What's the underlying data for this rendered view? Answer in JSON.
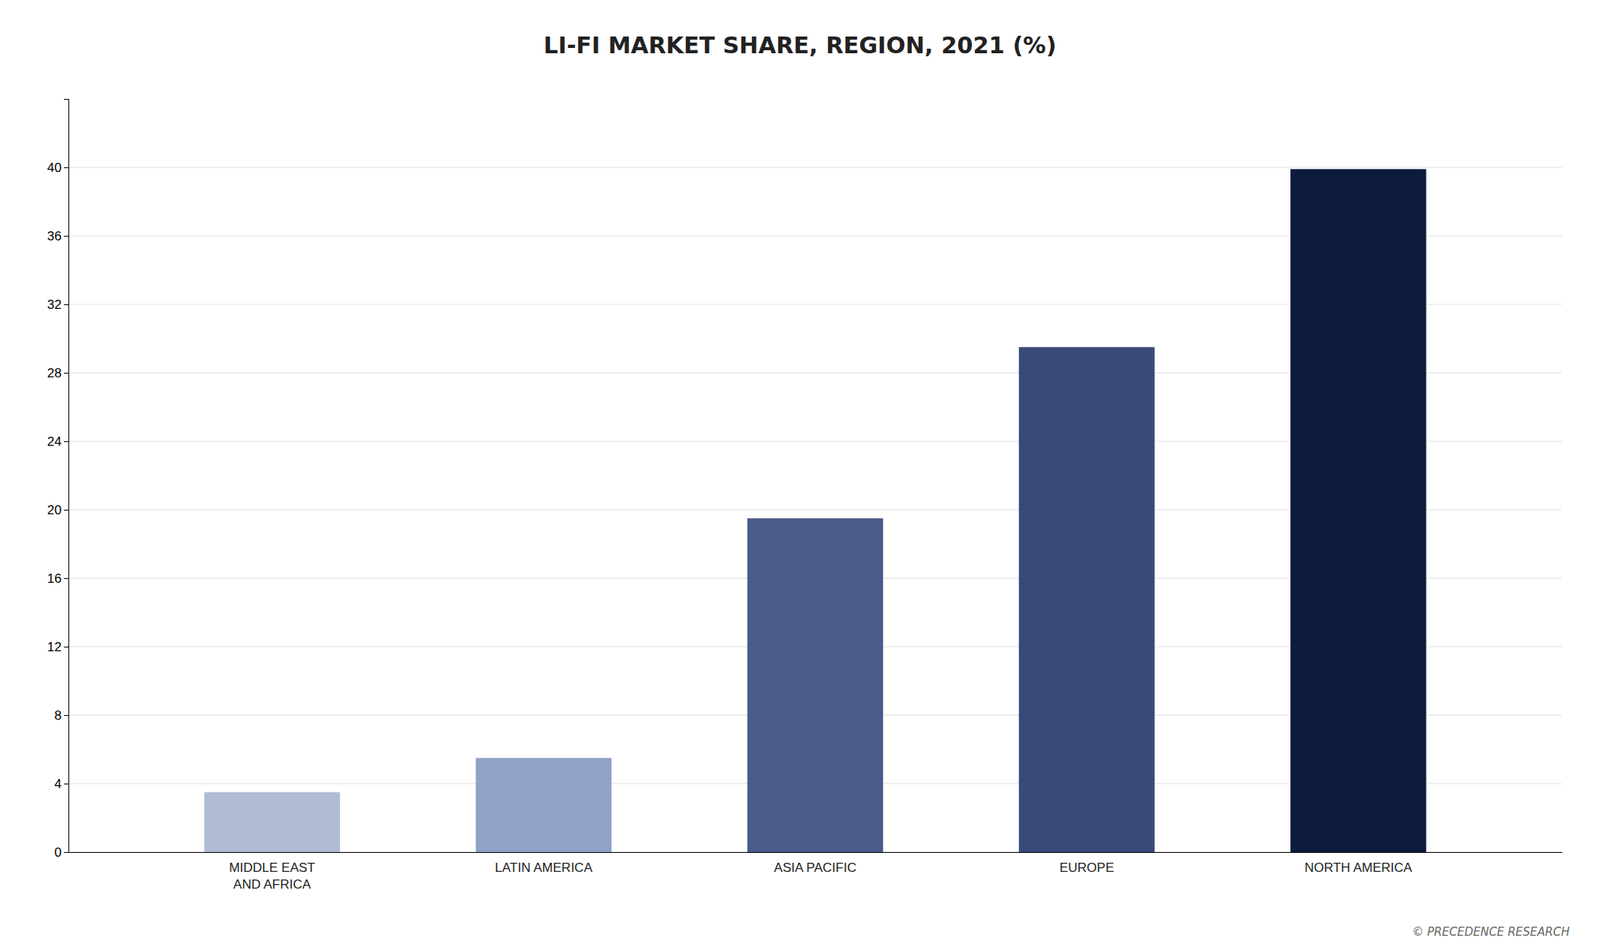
{
  "chart_data": {
    "type": "bar",
    "title": "LI-FI MARKET SHARE, REGION, 2021 (%)",
    "categories": [
      "MIDDLE EAST\nAND AFRICA",
      "LATIN AMERICA",
      "ASIA PACIFIC",
      "EUROPE",
      "NORTH AMERICA"
    ],
    "values": [
      3.5,
      5.5,
      19.5,
      29.5,
      39.9
    ],
    "colors": [
      "#b0bcd4",
      "#8fa3c8",
      "#4a5b8a",
      "#3a4a78",
      "#0d1b3e"
    ],
    "ylim": [
      0,
      44
    ],
    "yticks": [
      0,
      4,
      8,
      12,
      16,
      20,
      24,
      28,
      32,
      36,
      40
    ],
    "grid": true,
    "annotations": [
      "© PRECEDENCE RESEARCH"
    ]
  }
}
